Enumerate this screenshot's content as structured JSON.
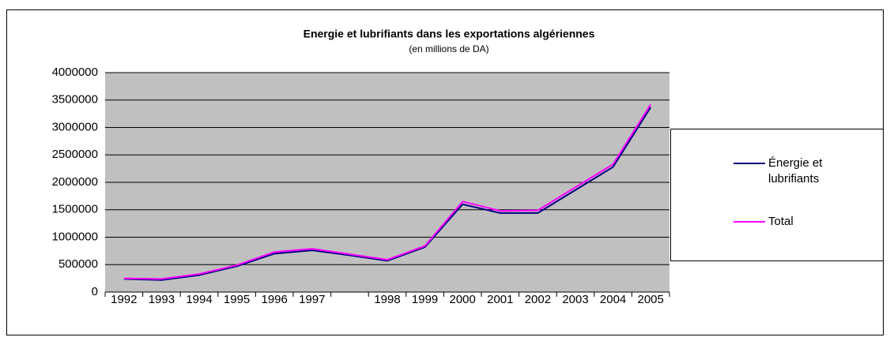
{
  "chart_data": {
    "type": "line",
    "title": "Energie et lubrifiants dans les exportations algériennes",
    "subtitle": "(en millions de DA)",
    "categories": [
      "1992",
      "1993",
      "1994",
      "1995",
      "1996",
      "1997",
      null,
      "1998",
      "1999",
      "2000",
      "2001",
      "2002",
      "2003",
      "2004",
      "2005"
    ],
    "series": [
      {
        "name": "Énergie et lubrifiants",
        "color": "#000080",
        "values": [
          240000,
          220000,
          310000,
          470000,
          700000,
          760000,
          670000,
          570000,
          820000,
          1600000,
          1440000,
          1440000,
          1860000,
          2280000,
          3370000
        ]
      },
      {
        "name": "Total",
        "color": "#ff00ff",
        "values": [
          250000,
          240000,
          330000,
          490000,
          730000,
          790000,
          690000,
          590000,
          840000,
          1650000,
          1480000,
          1490000,
          1910000,
          2330000,
          3420000
        ]
      }
    ],
    "ylim": [
      0,
      4000000
    ],
    "yticks": [
      0,
      500000,
      1000000,
      1500000,
      2000000,
      2500000,
      3000000,
      3500000,
      4000000
    ],
    "grid": true,
    "legend": "right"
  }
}
